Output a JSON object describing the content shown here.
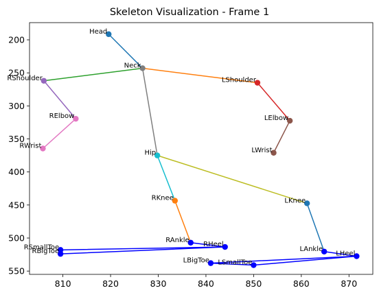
{
  "chart_data": {
    "type": "scatter",
    "title": "Skeleton Visualization - Frame 1",
    "xlabel": "",
    "ylabel": "",
    "xlim": [
      803,
      875
    ],
    "ylim": [
      555,
      174
    ],
    "y_inverted": true,
    "grid": false,
    "x_ticks": [
      810,
      820,
      830,
      840,
      850,
      860,
      870
    ],
    "y_ticks": [
      200,
      250,
      300,
      350,
      400,
      450,
      500,
      550
    ],
    "joints": [
      {
        "name": "Head",
        "x": 819.6,
        "y": 191.5,
        "color": "#1f77b4"
      },
      {
        "name": "Neck",
        "x": 826.7,
        "y": 243.0,
        "color": "#7f7f7f"
      },
      {
        "name": "RShoulder",
        "x": 806.0,
        "y": 262.0,
        "color": "#9467bd"
      },
      {
        "name": "RElbow",
        "x": 812.7,
        "y": 319.5,
        "color": "#e377c2"
      },
      {
        "name": "RWrist",
        "x": 805.8,
        "y": 364.5,
        "color": "#e377c2"
      },
      {
        "name": "LShoulder",
        "x": 850.8,
        "y": 265.0,
        "color": "#d62728"
      },
      {
        "name": "LElbow",
        "x": 857.6,
        "y": 322.5,
        "color": "#8c564b"
      },
      {
        "name": "LWrist",
        "x": 854.2,
        "y": 371.0,
        "color": "#8c564b"
      },
      {
        "name": "Hip",
        "x": 829.8,
        "y": 375.0,
        "color": "#17becf"
      },
      {
        "name": "RKnee",
        "x": 833.5,
        "y": 443.5,
        "color": "#ff7f0e"
      },
      {
        "name": "LKnee",
        "x": 861.2,
        "y": 447.5,
        "color": "#1f77b4"
      },
      {
        "name": "RAnkle",
        "x": 836.8,
        "y": 507.0,
        "color": "#0000ff"
      },
      {
        "name": "LAnkle",
        "x": 864.8,
        "y": 520.5,
        "color": "#0000ff"
      },
      {
        "name": "RHeel",
        "x": 844.0,
        "y": 513.5,
        "color": "#0000ff"
      },
      {
        "name": "LHeel",
        "x": 871.6,
        "y": 527.5,
        "color": "#0000ff"
      },
      {
        "name": "RSmallToe",
        "x": 809.5,
        "y": 518.0,
        "color": "#0000ff"
      },
      {
        "name": "RBigToe",
        "x": 809.5,
        "y": 524.0,
        "color": "#0000ff"
      },
      {
        "name": "LBigToe",
        "x": 841.0,
        "y": 538.0,
        "color": "#0000ff"
      },
      {
        "name": "LSmallToe",
        "x": 850.0,
        "y": 541.0,
        "color": "#0000ff"
      }
    ],
    "bones": [
      {
        "from": "Head",
        "to": "Neck",
        "color": "#1f77b4"
      },
      {
        "from": "Neck",
        "to": "RShoulder",
        "color": "#2ca02c"
      },
      {
        "from": "Neck",
        "to": "LShoulder",
        "color": "#ff7f0e"
      },
      {
        "from": "RShoulder",
        "to": "RElbow",
        "color": "#9467bd"
      },
      {
        "from": "RElbow",
        "to": "RWrist",
        "color": "#e377c2"
      },
      {
        "from": "LShoulder",
        "to": "LElbow",
        "color": "#d62728"
      },
      {
        "from": "LElbow",
        "to": "LWrist",
        "color": "#8c564b"
      },
      {
        "from": "Neck",
        "to": "Hip",
        "color": "#7f7f7f"
      },
      {
        "from": "Hip",
        "to": "RKnee",
        "color": "#17becf"
      },
      {
        "from": "Hip",
        "to": "LKnee",
        "color": "#bcbd22"
      },
      {
        "from": "RKnee",
        "to": "RAnkle",
        "color": "#ff7f0e"
      },
      {
        "from": "LKnee",
        "to": "LAnkle",
        "color": "#1f77b4"
      },
      {
        "from": "RAnkle",
        "to": "RHeel",
        "color": "#0000ff"
      },
      {
        "from": "RHeel",
        "to": "RSmallToe",
        "color": "#0000ff"
      },
      {
        "from": "RSmallToe",
        "to": "RBigToe",
        "color": "#0000ff"
      },
      {
        "from": "RBigToe",
        "to": "RHeel",
        "color": "#0000ff"
      },
      {
        "from": "LAnkle",
        "to": "LHeel",
        "color": "#0000ff"
      },
      {
        "from": "LHeel",
        "to": "LBigToe",
        "color": "#0000ff"
      },
      {
        "from": "LBigToe",
        "to": "LSmallToe",
        "color": "#0000ff"
      },
      {
        "from": "LSmallToe",
        "to": "LHeel",
        "color": "#0000ff"
      }
    ]
  }
}
